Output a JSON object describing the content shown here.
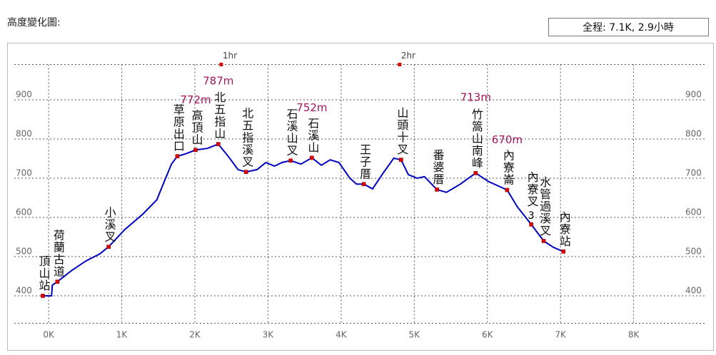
{
  "header": {
    "title": "高度變化圖:",
    "summary": "全程: 7.1K, 2.9小時"
  },
  "chart_data": {
    "type": "line",
    "x": [
      -0.08,
      0.04,
      0.05,
      0.12,
      0.31,
      0.51,
      0.7,
      0.82,
      1.04,
      1.29,
      1.48,
      1.58,
      1.68,
      1.76,
      1.87,
      2.01,
      2.17,
      2.32,
      2.46,
      2.59,
      2.7,
      2.85,
      2.97,
      3.09,
      3.19,
      3.31,
      3.45,
      3.6,
      3.73,
      3.85,
      3.97,
      4.12,
      4.21,
      4.31,
      4.43,
      4.56,
      4.72,
      4.82,
      4.92,
      5.04,
      5.14,
      5.31,
      5.44,
      5.63,
      5.84,
      6.02,
      6.27,
      6.41,
      6.6,
      6.77,
      6.9,
      7.04
    ],
    "series": [
      {
        "color": "#0000c0",
        "values": [
          400,
          400,
          427,
          436,
          464,
          489,
          507,
          525,
          569,
          609,
          645,
          691,
          736,
          756,
          762,
          772,
          776,
          787,
          755,
          722,
          716,
          722,
          740,
          731,
          740,
          745,
          736,
          752,
          733,
          747,
          740,
          700,
          685,
          685,
          673,
          709,
          751,
          747,
          709,
          700,
          704,
          671,
          664,
          685,
          713,
          691,
          670,
          627,
          582,
          540,
          524,
          513
        ]
      }
    ],
    "waypoints": [
      {
        "name": "頂山站",
        "x": -0.08,
        "elevation": 400
      },
      {
        "name": "荷蘭古道",
        "x": 0.12,
        "elevation": 436
      },
      {
        "name": "小溪叉",
        "x": 0.82,
        "elevation": 525
      },
      {
        "name": "草原出口",
        "x": 1.76,
        "elevation": 756
      },
      {
        "name": "高頂山",
        "x": 2.01,
        "elevation": 772,
        "label": "772m"
      },
      {
        "name": "北五指山",
        "x": 2.32,
        "elevation": 787,
        "label": "787m"
      },
      {
        "name": "北五指溪叉",
        "x": 2.7,
        "elevation": 716
      },
      {
        "name": "石溪山叉",
        "x": 3.31,
        "elevation": 745
      },
      {
        "name": "石溪山",
        "x": 3.6,
        "elevation": 752,
        "label": "752m"
      },
      {
        "name": "王子厝",
        "x": 4.31,
        "elevation": 685
      },
      {
        "name": "山頭十叉",
        "x": 4.82,
        "elevation": 747
      },
      {
        "name": "番婆厝",
        "x": 5.31,
        "elevation": 671
      },
      {
        "name": "竹篙山南峰",
        "x": 5.84,
        "elevation": 713,
        "label": "713m"
      },
      {
        "name": "內寮崙",
        "x": 6.27,
        "elevation": 670,
        "label": "670m"
      },
      {
        "name": "內寮叉",
        "x": 6.6,
        "elevation": 582,
        "note": "3"
      },
      {
        "name": "水管過溪叉",
        "x": 6.77,
        "elevation": 540
      },
      {
        "name": "內寮站",
        "x": 7.04,
        "elevation": 513
      }
    ],
    "hours": [
      {
        "value": 2.36,
        "label": "1hr"
      },
      {
        "value": 4.8,
        "label": "2hr"
      }
    ],
    "xlim": [
      -0.47,
      9.0
    ],
    "ylim": [
      330,
      990
    ],
    "xticks": [
      {
        "value": 0,
        "label": "0K"
      },
      {
        "value": 1,
        "label": "1K"
      },
      {
        "value": 2,
        "label": "2K"
      },
      {
        "value": 3,
        "label": "3K"
      },
      {
        "value": 4,
        "label": "4K"
      },
      {
        "value": 5,
        "label": "5K"
      },
      {
        "value": 6,
        "label": "6K"
      },
      {
        "value": 7,
        "label": "7K"
      },
      {
        "value": 8,
        "label": "8K"
      }
    ],
    "yticks": [
      400,
      500,
      600,
      700,
      800,
      900
    ],
    "grid": true
  }
}
